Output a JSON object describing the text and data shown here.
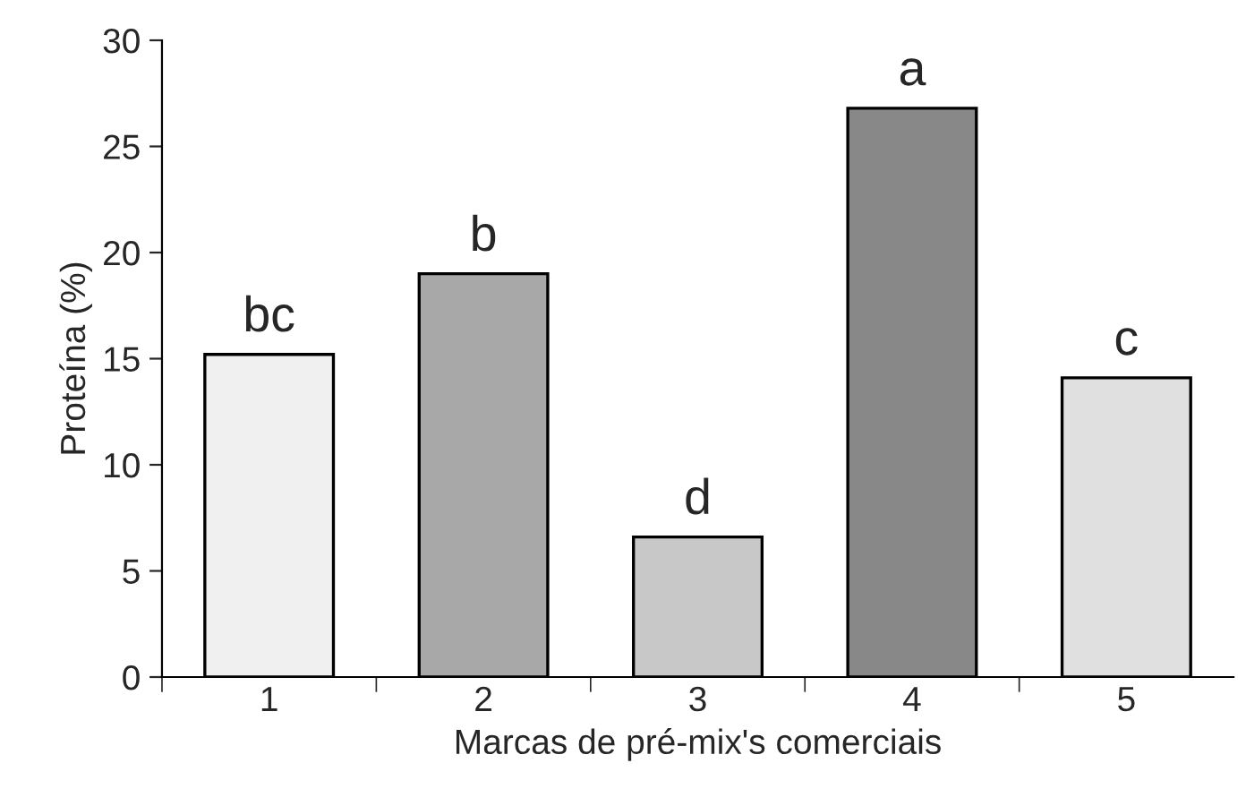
{
  "chart_data": {
    "type": "bar",
    "xlabel": "Marcas de pré-mix's comerciais",
    "ylabel": "Proteína (%)",
    "categories": [
      "1",
      "2",
      "3",
      "4",
      "5"
    ],
    "values": [
      15.2,
      19.0,
      6.6,
      26.8,
      14.1
    ],
    "colors": [
      "#f0f0f0",
      "#a8a8a8",
      "#c8c8c8",
      "#888888",
      "#e0e0e0"
    ],
    "ylim": [
      0,
      30
    ],
    "yticks": [
      0,
      5,
      10,
      15,
      20,
      25,
      30
    ],
    "grid": false,
    "legend": false,
    "annotations": [
      {
        "text": "bc",
        "x": "1",
        "y": 15.2
      },
      {
        "text": "b",
        "x": "2",
        "y": 19.0
      },
      {
        "text": "d",
        "x": "3",
        "y": 6.6
      },
      {
        "text": "a",
        "x": "4",
        "y": 26.8
      },
      {
        "text": "c",
        "x": "5",
        "y": 14.1
      }
    ]
  }
}
